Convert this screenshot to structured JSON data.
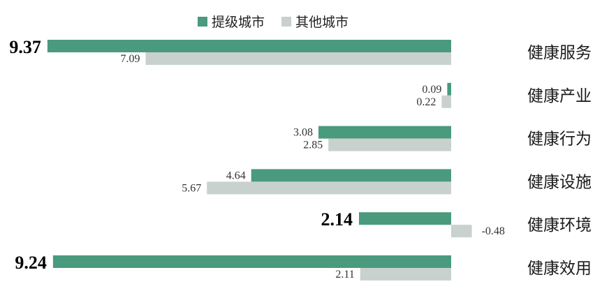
{
  "chart_data": {
    "type": "bar",
    "orientation": "horizontal",
    "categories": [
      "健康服务",
      "健康产业",
      "健康行为",
      "健康设施",
      "健康环境",
      "健康效用"
    ],
    "series": [
      {
        "name": "提级城市",
        "color": "#4a9a7e",
        "values": [
          9.37,
          0.09,
          3.08,
          4.64,
          2.14,
          9.24
        ],
        "labels": [
          "9.37",
          "0.09",
          "3.08",
          "4.64",
          "2.14",
          "9.24"
        ]
      },
      {
        "name": "其他城市",
        "color": "#c9d1cf",
        "values": [
          7.09,
          0.22,
          2.85,
          5.67,
          -0.48,
          2.11
        ],
        "labels": [
          "7.09",
          "0.22",
          "2.85",
          "5.67",
          "-0.48",
          "2.11"
        ]
      }
    ],
    "emphasized_labels": [
      "9.37",
      "2.14",
      "9.24"
    ],
    "legend_position": "top-center",
    "category_axis_side": "right",
    "value_direction": "leftward-positive",
    "grid": false
  }
}
